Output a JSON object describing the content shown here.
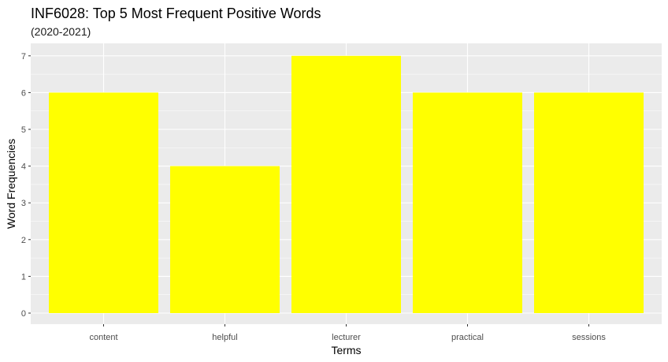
{
  "chart_data": {
    "type": "bar",
    "title": "INF6028: Top 5 Most Frequent Positive Words",
    "subtitle": "(2020-2021)",
    "xlabel": "Terms",
    "ylabel": "Word Frequencies",
    "categories": [
      "content",
      "helpful",
      "lecturer",
      "practical",
      "sessions"
    ],
    "values": [
      6,
      4,
      7,
      6,
      6
    ],
    "ylim": [
      0,
      7
    ],
    "y_ticks": [
      "0",
      "1",
      "2",
      "3",
      "4",
      "5",
      "6",
      "7"
    ],
    "grid": true,
    "legend": "none",
    "colors": {
      "bar": "#ffff00",
      "panel_background": "#ebebeb",
      "grid_major": "#ffffff",
      "tick_text": "#4d4d4d"
    }
  }
}
